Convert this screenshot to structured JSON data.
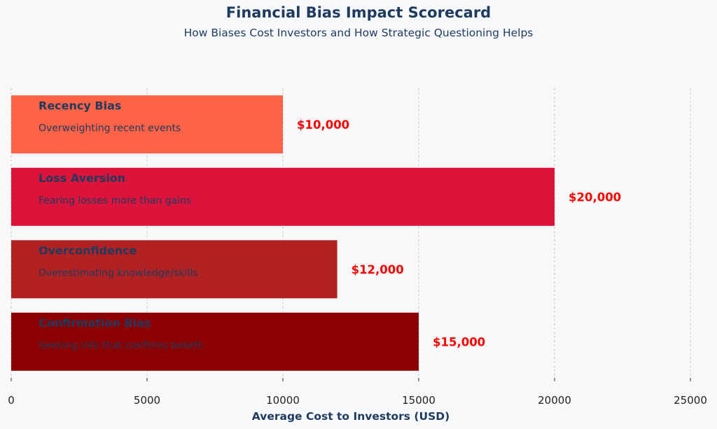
{
  "chart_data": {
    "type": "bar",
    "orientation": "horizontal",
    "title": "Financial Bias Impact Scorecard",
    "subtitle": "How Biases Cost Investors and How Strategic Questioning Helps",
    "xlabel": "Average Cost to Investors (USD)",
    "ylabel": "",
    "xlim": [
      0,
      25000
    ],
    "xticks": [
      0,
      5000,
      10000,
      15000,
      20000,
      25000
    ],
    "grid": "vertical-dashed",
    "bars": [
      {
        "category": "Recency Bias",
        "description": "Overweighting recent events",
        "value": 10000,
        "value_label": "$10,000",
        "color": "#ff6347"
      },
      {
        "category": "Loss Aversion",
        "description": "Fearing losses more than gains",
        "value": 20000,
        "value_label": "$20,000",
        "color": "#dc143c"
      },
      {
        "category": "Overconfidence",
        "description": "Overestimating knowledge/skills",
        "value": 12000,
        "value_label": "$12,000",
        "color": "#b22222"
      },
      {
        "category": "Confirmation Bias",
        "description": "Seeking info that confirms beliefs",
        "value": 15000,
        "value_label": "$15,000",
        "color": "#8b0000"
      }
    ],
    "colors": {
      "text": "#1f3a5f",
      "value_label": "#ff0000",
      "grid": "#c8c8c8"
    }
  }
}
